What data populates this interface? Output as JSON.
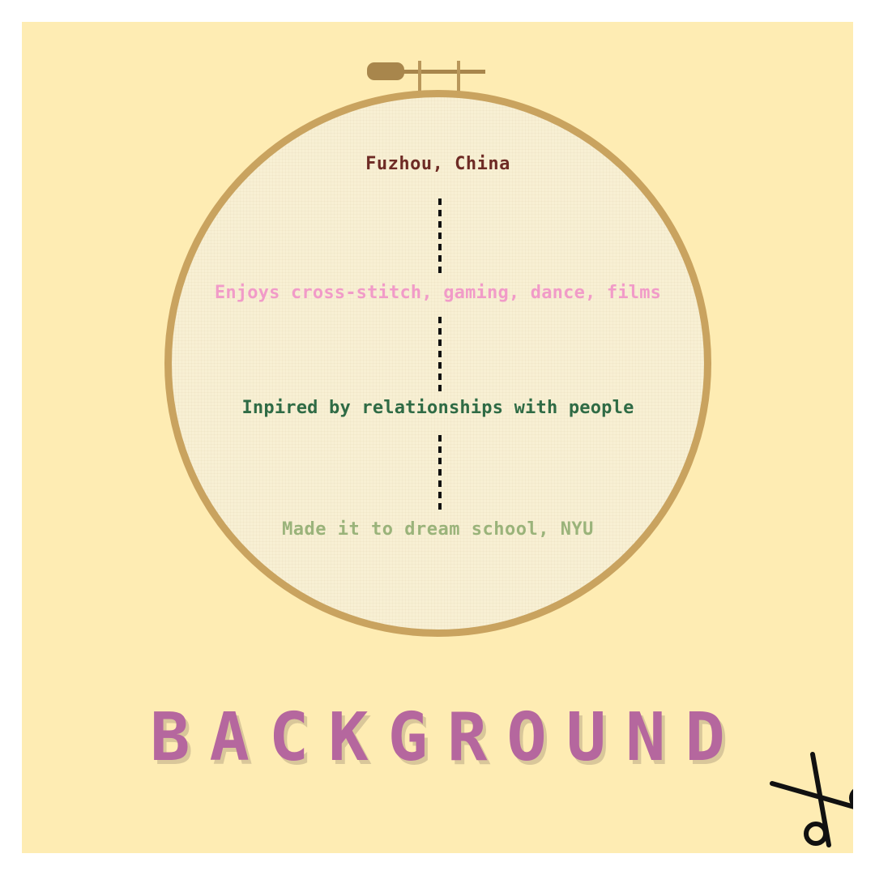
{
  "hoop": {
    "origin": "Fuzhou, China",
    "hobbies": "Enjoys cross-stitch, gaming, dance, films",
    "inspiration": "Inpired by relationships with people",
    "school": "Made it to dream school, NYU"
  },
  "title": "BACKGROUND",
  "icons": {
    "hoop_clamp": "embroidery-hoop-screw-icon",
    "scissors": "scissors-icon"
  },
  "colors": {
    "background": "#feecb3",
    "hoop_rim": "#c9a35f",
    "fabric": "#f8f0d4",
    "origin_text": "#6e2b25",
    "hobbies_text": "#f19bc8",
    "inspiration_text": "#2f6b45",
    "school_text": "#9ab37a",
    "title_text": "#b5679e"
  }
}
